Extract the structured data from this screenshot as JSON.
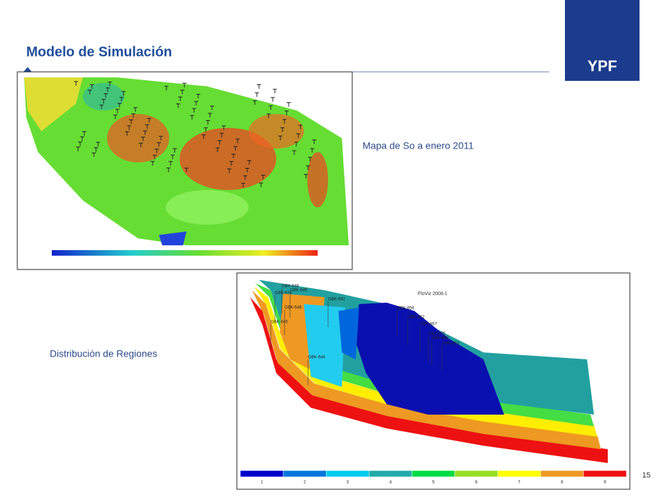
{
  "header": {
    "title": "Modelo de Simulación",
    "logo": "YPF"
  },
  "figures": [
    {
      "caption": "Mapa de So a enero 2011"
    },
    {
      "caption": "Distribución de Regiones",
      "watermark": "FloViz 2008.1",
      "well_labels": [
        "GBK-648",
        "GBK-649",
        "GBK-674",
        "GBK-642",
        "GBK-656",
        "GBK-662",
        "GBK-657",
        "GBK-675",
        "GBK-682",
        "GBK-653",
        "GBK-645",
        "GBK-644",
        "GBK-646"
      ],
      "legend": [
        1,
        2,
        3,
        4,
        5,
        6,
        7,
        8,
        9
      ]
    }
  ],
  "page_number": 15
}
